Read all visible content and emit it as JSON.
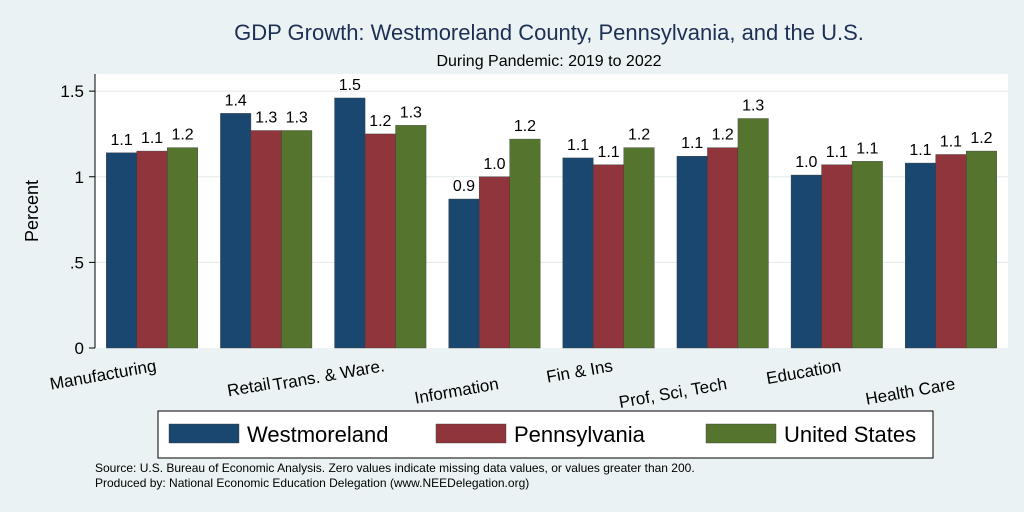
{
  "chart_data": {
    "type": "bar",
    "title": "GDP Growth: Westmoreland County, Pennsylvania, and the U.S.",
    "subtitle": "During Pandemic: 2019 to 2022",
    "ylabel": "Percent",
    "ylim": [
      0,
      1.6
    ],
    "yticks": [
      0,
      0.5,
      1,
      1.5
    ],
    "ytick_labels": [
      "0",
      ".5",
      "1",
      "1.5"
    ],
    "grid": true,
    "legend_position": "bottom",
    "categories": [
      "Manufacturing",
      "Retail",
      "Trans. & Ware.",
      "Information",
      "Fin & Ins",
      "Prof, Sci, Tech",
      "Education",
      "Health Care"
    ],
    "series": [
      {
        "name": "Westmoreland",
        "color": "#1a476f",
        "values": [
          1.14,
          1.37,
          1.46,
          0.87,
          1.11,
          1.12,
          1.01,
          1.08
        ],
        "labels": [
          "1.1",
          "1.4",
          "1.5",
          "0.9",
          "1.1",
          "1.1",
          "1.0",
          "1.1"
        ]
      },
      {
        "name": "Pennsylvania",
        "color": "#90353b",
        "values": [
          1.15,
          1.27,
          1.25,
          1.0,
          1.07,
          1.17,
          1.07,
          1.13
        ],
        "labels": [
          "1.1",
          "1.3",
          "1.2",
          "1.0",
          "1.1",
          "1.2",
          "1.1",
          "1.1"
        ]
      },
      {
        "name": "United States",
        "color": "#55752f",
        "values": [
          1.17,
          1.27,
          1.3,
          1.22,
          1.17,
          1.34,
          1.09,
          1.15
        ],
        "labels": [
          "1.2",
          "1.3",
          "1.3",
          "1.2",
          "1.2",
          "1.3",
          "1.1",
          "1.2"
        ]
      }
    ]
  },
  "notes": {
    "source": "Source: U.S. Bureau of Economic Analysis. Zero values indicate missing data values, or values greater than 200.",
    "produced_by": "Produced by: National Economic Education Delegation (www.NEEDelegation.org)"
  }
}
